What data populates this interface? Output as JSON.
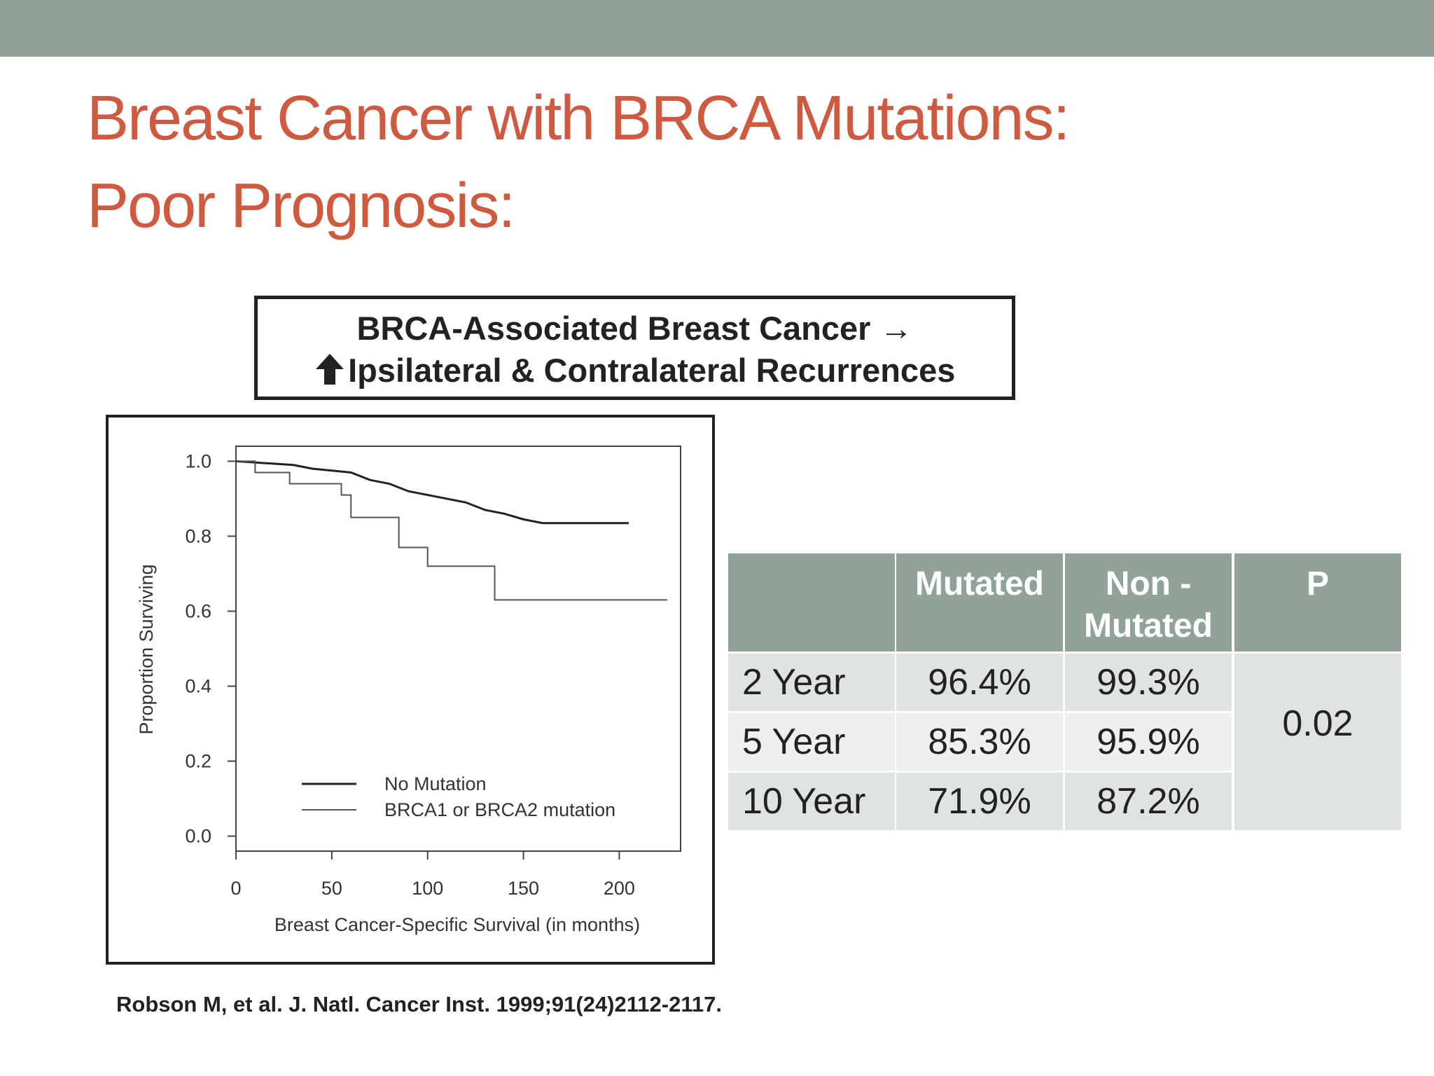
{
  "header": {
    "title_lines": [
      "Breast Cancer with BRCA Mutations:",
      "Poor Prognosis:"
    ]
  },
  "callout": {
    "lines": [
      "BRCA-Associated Breast Cancer →",
      "Ipsilateral & Contralateral Recurrences"
    ]
  },
  "chart_data": {
    "type": "line",
    "step": false,
    "x_label": "Breast Cancer-Specific Survival (in months)",
    "y_label": "Proportion Surviving",
    "xlim": [
      0,
      232
    ],
    "ylim": [
      -0.04,
      1.04
    ],
    "xticks": [
      0,
      50,
      100,
      150,
      200
    ],
    "yticks": [
      {
        "value": 0,
        "label": "0.0"
      },
      0.2,
      0.4,
      0.6,
      0.8,
      {
        "value": 1,
        "label": "1.0"
      }
    ],
    "legend": "lower left",
    "series": [
      {
        "name": "No Mutation",
        "color": "#222222",
        "x": [
          0,
          30,
          40,
          50,
          60,
          70,
          80,
          90,
          100,
          110,
          120,
          130,
          140,
          150,
          160,
          205
        ],
        "values": [
          1,
          0.99,
          0.98,
          0.975,
          0.97,
          0.95,
          0.94,
          0.92,
          0.91,
          0.9,
          0.89,
          0.87,
          0.86,
          0.845,
          0.835,
          0.835
        ]
      },
      {
        "name": "BRCA1 or BRCA2 mutation",
        "color": "#555555",
        "x": [
          0,
          10,
          10,
          28,
          28,
          55,
          55,
          60,
          60,
          85,
          85,
          100,
          100,
          135,
          135,
          225
        ],
        "values": [
          1,
          1,
          0.97,
          0.97,
          0.94,
          0.94,
          0.91,
          0.91,
          0.85,
          0.85,
          0.77,
          0.77,
          0.72,
          0.72,
          0.63,
          0.63
        ]
      }
    ]
  },
  "table": {
    "columns": [
      "Mutated",
      "Non - Mutated",
      "P"
    ],
    "rows": [
      {
        "label": "2 Year",
        "values": [
          "96.4%",
          "99.3%"
        ]
      },
      {
        "label": "5 Year",
        "values": [
          "85.3%",
          "95.9%"
        ]
      },
      {
        "label": "10 Year",
        "values": [
          "71.9%",
          "87.2%"
        ]
      }
    ],
    "p_value": "0.02"
  },
  "citation": "Robson M, et al. J. Natl. Cancer Inst. 1999;91(24)2112-2117."
}
